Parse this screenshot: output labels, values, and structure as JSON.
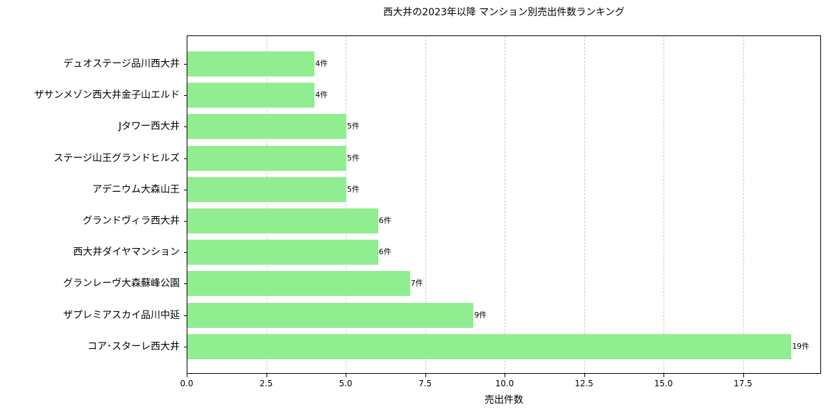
{
  "chart_data": {
    "type": "bar",
    "orientation": "horizontal",
    "title": "西大井の2023年以降 マンション別売出件数ランキング",
    "xlabel": "売出件数",
    "ylabel": "",
    "xlim": [
      0,
      19.95
    ],
    "xticks": [
      "0.0",
      "2.5",
      "5.0",
      "7.5",
      "10.0",
      "12.5",
      "15.0",
      "17.5"
    ],
    "xtick_values": [
      0,
      2.5,
      5,
      7.5,
      10,
      12.5,
      15,
      17.5
    ],
    "grid": {
      "axis": "x",
      "style": "dashed"
    },
    "bar_color": "#90ee90",
    "label_suffix": "件",
    "categories": [
      "デュオステージ品川西大井",
      "ザサンメゾン西大井金子山エルド",
      "Jタワー西大井",
      "ステージ山王グランドヒルズ",
      "アデニウム大森山王",
      "グランドヴィラ西大井",
      "西大井ダイヤマンション",
      "グランレーヴ大森蘇峰公園",
      "ザプレミアスカイ品川中延",
      "コア･スターレ西大井"
    ],
    "values": [
      4,
      4,
      5,
      5,
      5,
      6,
      6,
      7,
      9,
      19
    ],
    "bar_labels": [
      "4件",
      "4件",
      "5件",
      "5件",
      "5件",
      "6件",
      "6件",
      "7件",
      "9件",
      "19件"
    ]
  }
}
